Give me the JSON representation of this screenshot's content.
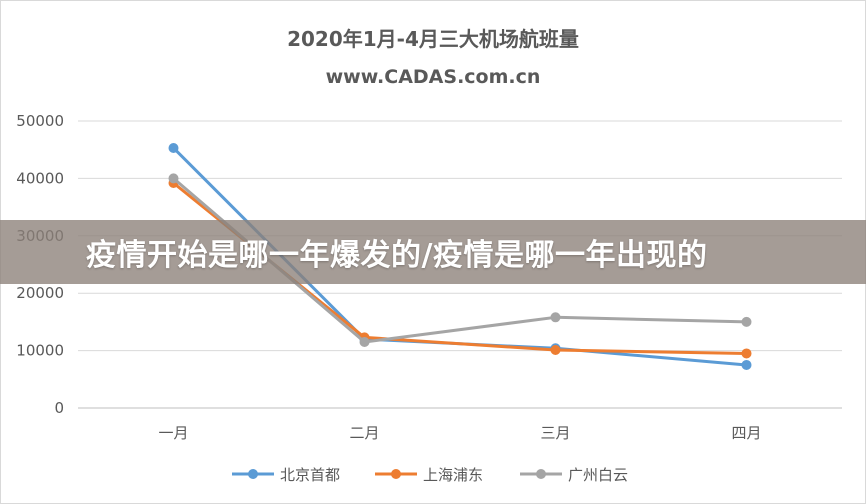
{
  "chart_data": {
    "type": "line",
    "title": "2020年1月-4月三大机场航班量",
    "subtitle": "www.CADAS.com.cn",
    "categories": [
      "一月",
      "二月",
      "三月",
      "四月"
    ],
    "ylim": [
      0,
      50000
    ],
    "y_ticks": [
      "0",
      "10000",
      "20000",
      "30000",
      "40000",
      "50000"
    ],
    "grid": true,
    "legend_position": "bottom",
    "series": [
      {
        "name": "北京首都",
        "color": "#5b9bd5",
        "values": [
          45300,
          12000,
          10400,
          7500
        ]
      },
      {
        "name": "上海浦东",
        "color": "#ed7d31",
        "values": [
          39200,
          12300,
          10100,
          9500
        ]
      },
      {
        "name": "广州白云",
        "color": "#a5a5a5",
        "values": [
          40000,
          11500,
          15800,
          15000
        ]
      }
    ]
  },
  "overlay": {
    "banner_text": "疫情开始是哪一年爆发的/疫情是哪一年出现的"
  }
}
